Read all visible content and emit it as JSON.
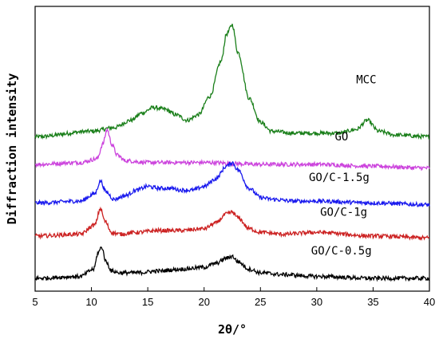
{
  "chart_data": {
    "type": "line",
    "xlabel": "2θ/°",
    "ylabel": "Diffraction intensity",
    "xlim": [
      5,
      40
    ],
    "xticks": [
      5,
      10,
      15,
      20,
      25,
      30,
      35,
      40
    ],
    "y_tick_labels": false,
    "grid": false,
    "legend": "none (series labels at right end of each curve)",
    "series": [
      {
        "name": "MCC",
        "color": "#1a7f1a",
        "x": [
          5,
          10,
          12,
          13.5,
          14.5,
          15.5,
          16.5,
          17.5,
          18.5,
          19.5,
          20.5,
          21.5,
          22,
          22.5,
          23,
          24,
          25,
          26,
          28,
          30,
          32,
          33.5,
          34.5,
          35.5,
          37,
          40
        ],
        "y": [
          0.84,
          0.87,
          0.89,
          0.93,
          0.97,
          1.0,
          0.99,
          0.96,
          0.93,
          0.96,
          1.06,
          1.25,
          1.4,
          1.45,
          1.3,
          1.05,
          0.92,
          0.87,
          0.86,
          0.86,
          0.86,
          0.88,
          0.93,
          0.87,
          0.85,
          0.84
        ]
      },
      {
        "name": "GO",
        "color": "#cc44dd",
        "x": [
          5,
          9,
          10.5,
          11,
          11.4,
          11.8,
          12.3,
          13,
          15,
          20,
          25,
          30,
          35,
          40
        ],
        "y": [
          0.69,
          0.7,
          0.72,
          0.8,
          0.88,
          0.8,
          0.74,
          0.71,
          0.7,
          0.7,
          0.69,
          0.69,
          0.68,
          0.67
        ]
      },
      {
        "name": "GO/C-1.5g",
        "color": "#1a1aee",
        "x": [
          5,
          9,
          10.3,
          10.8,
          11.3,
          12,
          13,
          14,
          15,
          16,
          17,
          18,
          19,
          20,
          21,
          22,
          22.5,
          23,
          24,
          25,
          26,
          28,
          30,
          35,
          40
        ],
        "y": [
          0.48,
          0.49,
          0.53,
          0.6,
          0.54,
          0.5,
          0.52,
          0.55,
          0.57,
          0.56,
          0.56,
          0.55,
          0.55,
          0.57,
          0.61,
          0.68,
          0.7,
          0.66,
          0.56,
          0.51,
          0.5,
          0.49,
          0.49,
          0.48,
          0.47
        ]
      },
      {
        "name": "GO/C-1g",
        "color": "#cc2222",
        "x": [
          5,
          9,
          10.3,
          10.8,
          11.2,
          11.8,
          12.5,
          14,
          16,
          18,
          20,
          21,
          22,
          22.5,
          23,
          24,
          25,
          27,
          30,
          35,
          40
        ],
        "y": [
          0.3,
          0.31,
          0.36,
          0.45,
          0.38,
          0.32,
          0.31,
          0.32,
          0.33,
          0.33,
          0.34,
          0.37,
          0.42,
          0.43,
          0.4,
          0.34,
          0.32,
          0.31,
          0.32,
          0.3,
          0.29
        ]
      },
      {
        "name": "GO/C-0.5g",
        "color": "#000000",
        "x": [
          5,
          9,
          10.2,
          10.6,
          10.9,
          11.3,
          11.8,
          12.5,
          14,
          16,
          18,
          20,
          21,
          22,
          22.5,
          23,
          24,
          25,
          27,
          30,
          35,
          40
        ],
        "y": [
          0.07,
          0.08,
          0.12,
          0.21,
          0.24,
          0.16,
          0.11,
          0.1,
          0.1,
          0.11,
          0.12,
          0.13,
          0.15,
          0.18,
          0.19,
          0.16,
          0.12,
          0.1,
          0.09,
          0.08,
          0.07,
          0.07
        ]
      }
    ]
  }
}
